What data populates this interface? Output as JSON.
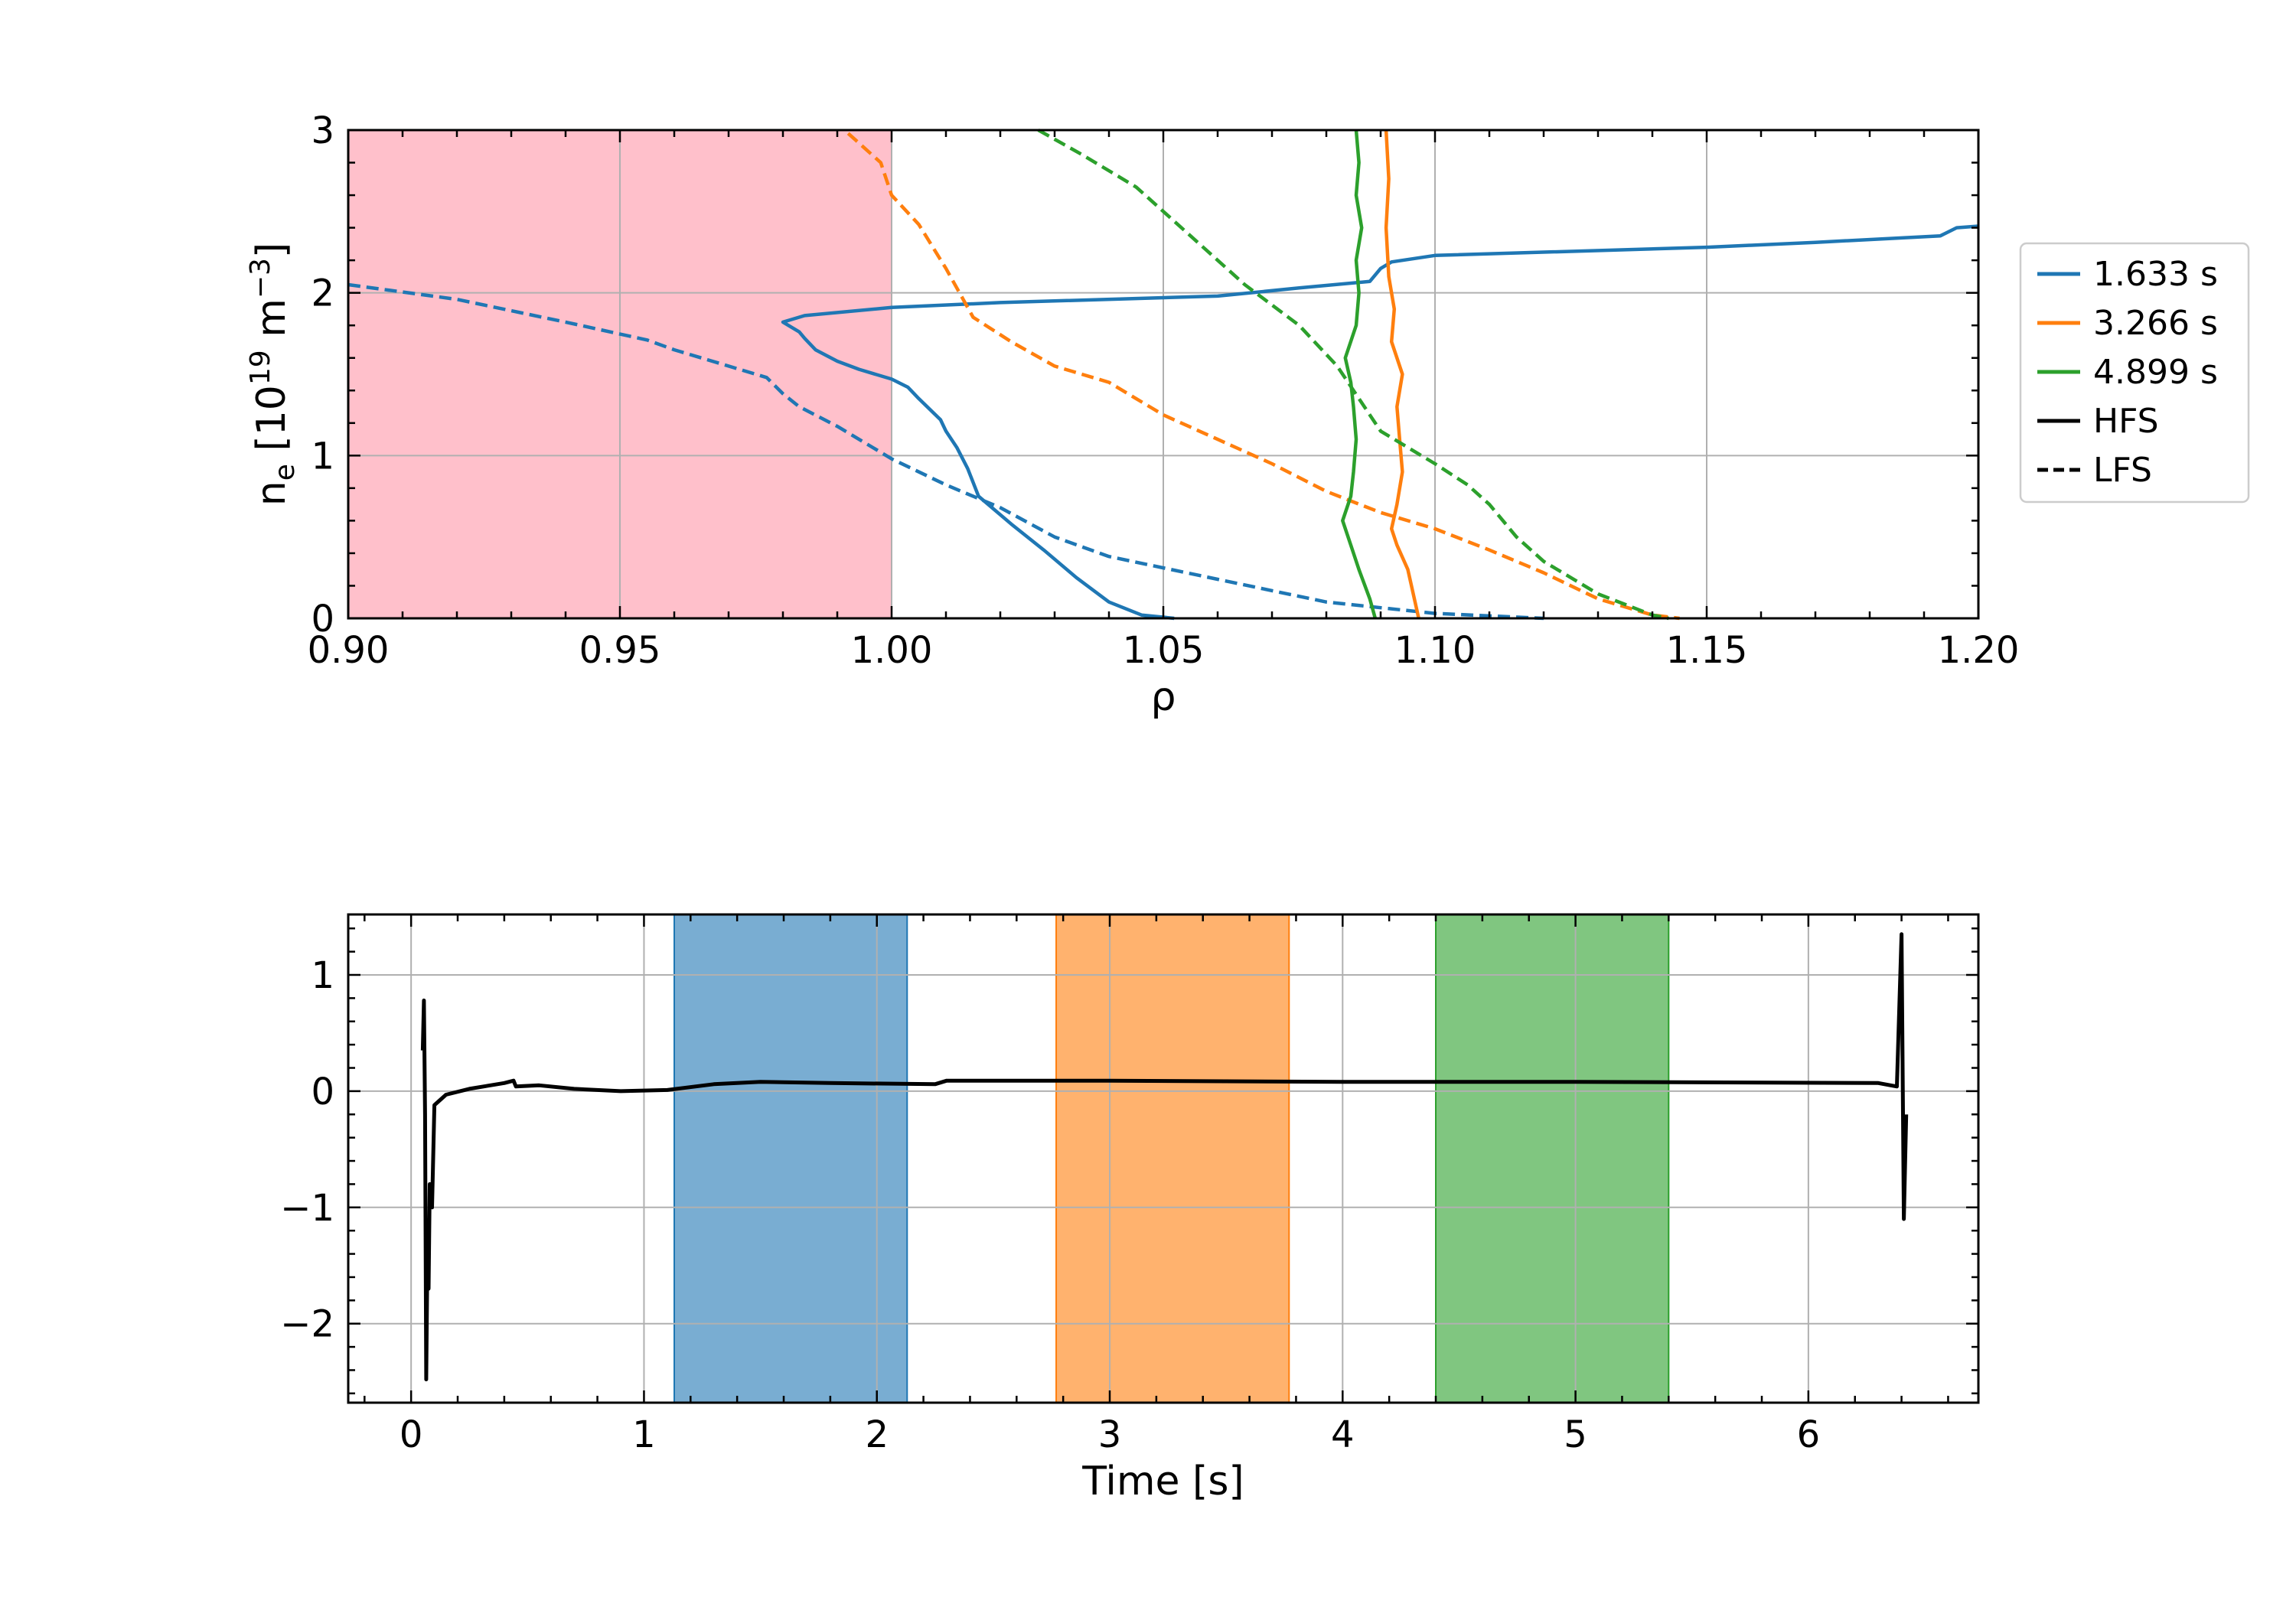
{
  "figure": {
    "background": "#ffffff"
  },
  "colors": {
    "c1": "#1f77b4",
    "c2": "#ff7f0e",
    "c3": "#2ca02c",
    "black": "#000000",
    "grid": "#b0b0b0",
    "shade": "#ffc0cb"
  },
  "chart_data": [
    {
      "type": "line",
      "xlabel": "ρ",
      "ylabel_html": "n_e [10^19 m^-3]",
      "xlim": [
        0.9,
        1.2
      ],
      "ylim": [
        0,
        3
      ],
      "xticks": [
        0.9,
        0.95,
        1.0,
        1.05,
        1.1,
        1.15,
        1.2
      ],
      "xtick_labels": [
        "0.90",
        "0.95",
        "1.00",
        "1.05",
        "1.10",
        "1.15",
        "1.20"
      ],
      "yticks": [
        0,
        1,
        2,
        3
      ],
      "ytick_labels": [
        "0",
        "1",
        "2",
        "3"
      ],
      "grid": true,
      "shaded_region": {
        "x": [
          0.9,
          1.0
        ],
        "color": "#ffc0cb"
      },
      "legend": {
        "placement": "outside-right",
        "entries": [
          {
            "label": "1.633 s",
            "color": "#1f77b4",
            "style": "solid"
          },
          {
            "label": "3.266 s",
            "color": "#ff7f0e",
            "style": "solid"
          },
          {
            "label": "4.899 s",
            "color": "#2ca02c",
            "style": "solid"
          },
          {
            "label": "HFS",
            "color": "#000000",
            "style": "solid"
          },
          {
            "label": "LFS",
            "color": "#000000",
            "style": "dashed"
          }
        ]
      },
      "series": [
        {
          "time": "1.633 s",
          "side": "HFS",
          "color": "#1f77b4",
          "dash": false,
          "points": [
            [
              1.052,
              0.0
            ],
            [
              1.046,
              0.02
            ],
            [
              1.04,
              0.1
            ],
            [
              1.034,
              0.25
            ],
            [
              1.028,
              0.42
            ],
            [
              1.022,
              0.58
            ],
            [
              1.016,
              0.75
            ],
            [
              1.014,
              0.92
            ],
            [
              1.012,
              1.05
            ],
            [
              1.01,
              1.15
            ],
            [
              1.009,
              1.22
            ],
            [
              1.005,
              1.35
            ],
            [
              1.003,
              1.42
            ],
            [
              1.0,
              1.47
            ],
            [
              0.994,
              1.53
            ],
            [
              0.99,
              1.58
            ],
            [
              0.986,
              1.65
            ],
            [
              0.984,
              1.72
            ],
            [
              0.983,
              1.76
            ],
            [
              0.98,
              1.82
            ],
            [
              0.984,
              1.86
            ],
            [
              1.0,
              1.91
            ],
            [
              1.02,
              1.94
            ],
            [
              1.06,
              1.98
            ],
            [
              1.075,
              2.03
            ],
            [
              1.088,
              2.07
            ],
            [
              1.09,
              2.15
            ],
            [
              1.092,
              2.19
            ],
            [
              1.1,
              2.23
            ],
            [
              1.15,
              2.28
            ],
            [
              1.17,
              2.31
            ],
            [
              1.193,
              2.35
            ],
            [
              1.196,
              2.4
            ],
            [
              1.2,
              2.41
            ]
          ]
        },
        {
          "time": "1.633 s",
          "side": "LFS",
          "color": "#1f77b4",
          "dash": true,
          "points": [
            [
              0.9,
              2.05
            ],
            [
              0.92,
              1.96
            ],
            [
              0.94,
              1.82
            ],
            [
              0.955,
              1.71
            ],
            [
              0.96,
              1.65
            ],
            [
              0.97,
              1.55
            ],
            [
              0.977,
              1.48
            ],
            [
              0.98,
              1.38
            ],
            [
              0.983,
              1.3
            ],
            [
              0.99,
              1.18
            ],
            [
              0.995,
              1.08
            ],
            [
              1.0,
              0.98
            ],
            [
              1.01,
              0.82
            ],
            [
              1.02,
              0.68
            ],
            [
              1.03,
              0.5
            ],
            [
              1.04,
              0.38
            ],
            [
              1.06,
              0.24
            ],
            [
              1.08,
              0.1
            ],
            [
              1.1,
              0.03
            ],
            [
              1.12,
              0.0
            ]
          ]
        },
        {
          "time": "3.266 s",
          "side": "HFS",
          "color": "#ff7f0e",
          "dash": false,
          "points": [
            [
              1.091,
              3.0
            ],
            [
              1.0915,
              2.7
            ],
            [
              1.091,
              2.4
            ],
            [
              1.0915,
              2.1
            ],
            [
              1.0925,
              1.9
            ],
            [
              1.092,
              1.7
            ],
            [
              1.094,
              1.5
            ],
            [
              1.093,
              1.3
            ],
            [
              1.0935,
              1.1
            ],
            [
              1.094,
              0.9
            ],
            [
              1.093,
              0.7
            ],
            [
              1.092,
              0.55
            ],
            [
              1.093,
              0.45
            ],
            [
              1.095,
              0.3
            ],
            [
              1.096,
              0.15
            ],
            [
              1.097,
              0.0
            ]
          ]
        },
        {
          "time": "3.266 s",
          "side": "LFS",
          "color": "#ff7f0e",
          "dash": true,
          "points": [
            [
              0.992,
              2.98
            ],
            [
              0.998,
              2.8
            ],
            [
              1.0,
              2.6
            ],
            [
              1.005,
              2.42
            ],
            [
              1.01,
              2.15
            ],
            [
              1.015,
              1.85
            ],
            [
              1.022,
              1.7
            ],
            [
              1.03,
              1.55
            ],
            [
              1.04,
              1.45
            ],
            [
              1.045,
              1.35
            ],
            [
              1.05,
              1.25
            ],
            [
              1.06,
              1.1
            ],
            [
              1.07,
              0.95
            ],
            [
              1.08,
              0.78
            ],
            [
              1.09,
              0.65
            ],
            [
              1.1,
              0.55
            ],
            [
              1.11,
              0.42
            ],
            [
              1.12,
              0.28
            ],
            [
              1.13,
              0.12
            ],
            [
              1.14,
              0.02
            ],
            [
              1.145,
              0.0
            ]
          ]
        },
        {
          "time": "4.899 s",
          "side": "HFS",
          "color": "#2ca02c",
          "dash": false,
          "points": [
            [
              1.0855,
              3.0
            ],
            [
              1.086,
              2.8
            ],
            [
              1.0855,
              2.6
            ],
            [
              1.0865,
              2.4
            ],
            [
              1.0855,
              2.2
            ],
            [
              1.086,
              2.0
            ],
            [
              1.0855,
              1.8
            ],
            [
              1.0835,
              1.6
            ],
            [
              1.0845,
              1.45
            ],
            [
              1.085,
              1.3
            ],
            [
              1.0855,
              1.1
            ],
            [
              1.085,
              0.9
            ],
            [
              1.0845,
              0.75
            ],
            [
              1.083,
              0.6
            ],
            [
              1.0845,
              0.45
            ],
            [
              1.086,
              0.3
            ],
            [
              1.088,
              0.12
            ],
            [
              1.089,
              0.0
            ]
          ]
        },
        {
          "time": "4.899 s",
          "side": "LFS",
          "color": "#2ca02c",
          "dash": true,
          "points": [
            [
              1.027,
              3.0
            ],
            [
              1.035,
              2.85
            ],
            [
              1.045,
              2.65
            ],
            [
              1.055,
              2.35
            ],
            [
              1.065,
              2.05
            ],
            [
              1.075,
              1.8
            ],
            [
              1.082,
              1.55
            ],
            [
              1.087,
              1.3
            ],
            [
              1.09,
              1.15
            ],
            [
              1.095,
              1.05
            ],
            [
              1.1,
              0.95
            ],
            [
              1.106,
              0.82
            ],
            [
              1.11,
              0.7
            ],
            [
              1.115,
              0.5
            ],
            [
              1.12,
              0.35
            ],
            [
              1.13,
              0.15
            ],
            [
              1.14,
              0.02
            ],
            [
              1.143,
              0.0
            ]
          ]
        }
      ]
    },
    {
      "type": "line",
      "xlabel": "Time [s]",
      "ylabel": "",
      "xlim": [
        -0.27,
        6.73
      ],
      "ylim": [
        -2.68,
        1.52
      ],
      "xticks": [
        0,
        1,
        2,
        3,
        4,
        5,
        6
      ],
      "xtick_labels": [
        "0",
        "1",
        "2",
        "3",
        "4",
        "5",
        "6"
      ],
      "yticks": [
        -2,
        -1,
        0,
        1
      ],
      "ytick_labels": [
        "−2",
        "−1",
        "0",
        "1"
      ],
      "grid": true,
      "shaded_regions": [
        {
          "x": [
            1.13,
            2.13
          ],
          "color": "#1f77b4"
        },
        {
          "x": [
            2.77,
            3.77
          ],
          "color": "#ff7f0e"
        },
        {
          "x": [
            4.4,
            5.4
          ],
          "color": "#2ca02c"
        }
      ],
      "series": [
        {
          "color": "#000000",
          "points": [
            [
              0.05,
              0.35
            ],
            [
              0.055,
              0.78
            ],
            [
              0.06,
              -0.2
            ],
            [
              0.065,
              -2.48
            ],
            [
              0.07,
              -1.4
            ],
            [
              0.075,
              -1.7
            ],
            [
              0.08,
              -0.8
            ],
            [
              0.09,
              -1.0
            ],
            [
              0.1,
              -0.12
            ],
            [
              0.15,
              -0.03
            ],
            [
              0.25,
              0.02
            ],
            [
              0.4,
              0.07
            ],
            [
              0.44,
              0.09
            ],
            [
              0.45,
              0.04
            ],
            [
              0.55,
              0.05
            ],
            [
              0.7,
              0.02
            ],
            [
              0.9,
              0.0
            ],
            [
              1.1,
              0.01
            ],
            [
              1.3,
              0.06
            ],
            [
              1.5,
              0.08
            ],
            [
              1.8,
              0.07
            ],
            [
              2.25,
              0.06
            ],
            [
              2.3,
              0.09
            ],
            [
              2.6,
              0.09
            ],
            [
              3.0,
              0.09
            ],
            [
              4.0,
              0.08
            ],
            [
              5.0,
              0.08
            ],
            [
              6.3,
              0.07
            ],
            [
              6.38,
              0.04
            ],
            [
              6.4,
              1.35
            ],
            [
              6.41,
              -1.1
            ],
            [
              6.42,
              -0.2
            ]
          ]
        }
      ]
    }
  ]
}
